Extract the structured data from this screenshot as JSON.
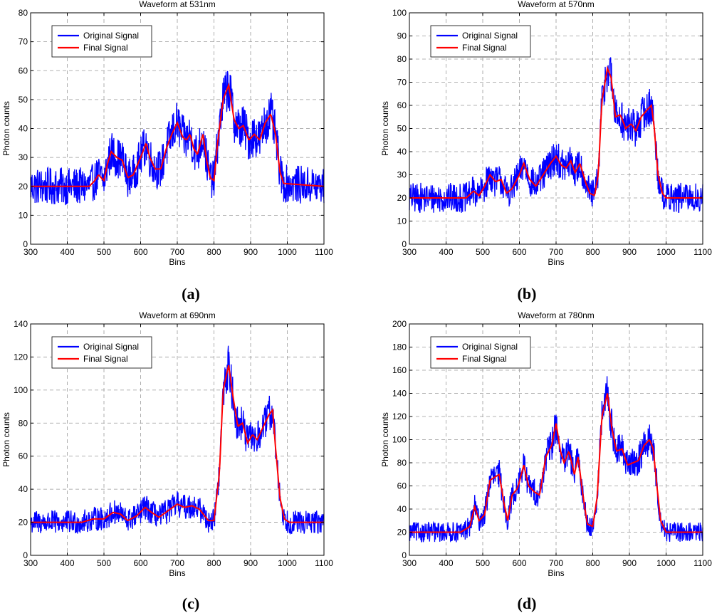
{
  "figure": {
    "legend_labels": [
      "Original Signal",
      "Final Signal"
    ],
    "series_colors": {
      "original": "#0000ff",
      "final": "#ff0000"
    }
  },
  "chart_data": [
    {
      "type": "line",
      "panel_label": "(a)",
      "panel_letter": "a",
      "title": "Waveform at 531nm",
      "xlabel": "Bins",
      "ylabel": "Photon counts",
      "xlim": [
        300,
        1100
      ],
      "ylim": [
        0,
        80
      ],
      "xticks": [
        300,
        400,
        500,
        600,
        700,
        800,
        900,
        1000,
        1100
      ],
      "yticks": [
        0,
        10,
        20,
        30,
        40,
        50,
        60,
        70,
        80
      ],
      "grid": true,
      "legend_position": "top-left",
      "noise_amplitude": 9,
      "series": [
        {
          "name": "Original Signal",
          "role": "original"
        },
        {
          "name": "Final Signal",
          "role": "final",
          "points": [
            [
              300,
              20
            ],
            [
              460,
              20
            ],
            [
              475,
              22
            ],
            [
              485,
              24
            ],
            [
              500,
              22
            ],
            [
              510,
              28
            ],
            [
              520,
              32
            ],
            [
              535,
              30
            ],
            [
              550,
              29
            ],
            [
              565,
              23
            ],
            [
              580,
              24
            ],
            [
              600,
              30
            ],
            [
              615,
              35
            ],
            [
              625,
              30
            ],
            [
              640,
              26
            ],
            [
              655,
              26
            ],
            [
              670,
              33
            ],
            [
              685,
              38
            ],
            [
              700,
              42
            ],
            [
              715,
              37
            ],
            [
              725,
              36
            ],
            [
              735,
              38
            ],
            [
              745,
              33
            ],
            [
              755,
              31
            ],
            [
              770,
              38
            ],
            [
              780,
              29
            ],
            [
              790,
              23
            ],
            [
              800,
              22
            ],
            [
              810,
              35
            ],
            [
              825,
              50
            ],
            [
              840,
              55
            ],
            [
              855,
              43
            ],
            [
              868,
              40
            ],
            [
              880,
              41
            ],
            [
              895,
              36
            ],
            [
              910,
              38
            ],
            [
              925,
              36
            ],
            [
              940,
              42
            ],
            [
              955,
              45
            ],
            [
              968,
              38
            ],
            [
              980,
              25
            ],
            [
              990,
              21
            ],
            [
              1100,
              20
            ]
          ]
        }
      ]
    },
    {
      "type": "line",
      "panel_label": "(b)",
      "panel_letter": "b",
      "title": "Waveform at 570nm",
      "xlabel": "Bins",
      "ylabel": "Photon counts",
      "xlim": [
        300,
        1100
      ],
      "ylim": [
        0,
        100
      ],
      "xticks": [
        300,
        400,
        500,
        600,
        700,
        800,
        900,
        1000,
        1100
      ],
      "yticks": [
        0,
        10,
        20,
        30,
        40,
        50,
        60,
        70,
        80,
        90,
        100
      ],
      "grid": true,
      "legend_position": "top-left",
      "noise_amplitude": 9,
      "series": [
        {
          "name": "Original Signal",
          "role": "original"
        },
        {
          "name": "Final Signal",
          "role": "final",
          "points": [
            [
              300,
              20
            ],
            [
              455,
              20
            ],
            [
              475,
              23
            ],
            [
              490,
              21
            ],
            [
              505,
              25
            ],
            [
              520,
              30
            ],
            [
              535,
              27
            ],
            [
              550,
              28
            ],
            [
              565,
              22
            ],
            [
              580,
              24
            ],
            [
              600,
              30
            ],
            [
              612,
              35
            ],
            [
              628,
              28
            ],
            [
              645,
              25
            ],
            [
              665,
              30
            ],
            [
              685,
              35
            ],
            [
              700,
              38
            ],
            [
              715,
              34
            ],
            [
              728,
              33
            ],
            [
              740,
              36
            ],
            [
              752,
              31
            ],
            [
              765,
              35
            ],
            [
              780,
              27
            ],
            [
              792,
              22
            ],
            [
              805,
              21
            ],
            [
              815,
              30
            ],
            [
              825,
              62
            ],
            [
              840,
              76
            ],
            [
              850,
              72
            ],
            [
              862,
              55
            ],
            [
              875,
              56
            ],
            [
              890,
              50
            ],
            [
              905,
              52
            ],
            [
              918,
              49
            ],
            [
              932,
              55
            ],
            [
              948,
              58
            ],
            [
              960,
              60
            ],
            [
              968,
              50
            ],
            [
              978,
              30
            ],
            [
              990,
              22
            ],
            [
              1000,
              20
            ],
            [
              1100,
              20
            ]
          ]
        }
      ]
    },
    {
      "type": "line",
      "panel_label": "(c)",
      "panel_letter": "c",
      "title": "Waveform at 690nm",
      "xlabel": "Bins",
      "ylabel": "Photon counts",
      "xlim": [
        300,
        1100
      ],
      "ylim": [
        0,
        140
      ],
      "xticks": [
        300,
        400,
        500,
        600,
        700,
        800,
        900,
        1000,
        1100
      ],
      "yticks": [
        0,
        20,
        40,
        60,
        80,
        100,
        120,
        140
      ],
      "grid": true,
      "legend_position": "top-left",
      "noise_amplitude": 10,
      "series": [
        {
          "name": "Original Signal",
          "role": "original"
        },
        {
          "name": "Final Signal",
          "role": "final",
          "points": [
            [
              300,
              20
            ],
            [
              440,
              20
            ],
            [
              470,
              22
            ],
            [
              500,
              22
            ],
            [
              525,
              26
            ],
            [
              545,
              25
            ],
            [
              565,
              21
            ],
            [
              590,
              24
            ],
            [
              612,
              29
            ],
            [
              630,
              26
            ],
            [
              650,
              23
            ],
            [
              675,
              27
            ],
            [
              700,
              31
            ],
            [
              720,
              29
            ],
            [
              740,
              30
            ],
            [
              760,
              28
            ],
            [
              785,
              21
            ],
            [
              800,
              21
            ],
            [
              815,
              50
            ],
            [
              825,
              100
            ],
            [
              840,
              115
            ],
            [
              852,
              96
            ],
            [
              865,
              78
            ],
            [
              878,
              80
            ],
            [
              892,
              68
            ],
            [
              905,
              73
            ],
            [
              918,
              70
            ],
            [
              935,
              78
            ],
            [
              950,
              85
            ],
            [
              960,
              88
            ],
            [
              968,
              65
            ],
            [
              980,
              35
            ],
            [
              992,
              22
            ],
            [
              1005,
              20
            ],
            [
              1100,
              20
            ]
          ]
        }
      ]
    },
    {
      "type": "line",
      "panel_label": "(d)",
      "panel_letter": "d",
      "title": "Waveform at 780nm",
      "xlabel": "Bins",
      "ylabel": "Photon counts",
      "xlim": [
        300,
        1100
      ],
      "ylim": [
        0,
        200
      ],
      "xticks": [
        300,
        400,
        500,
        600,
        700,
        800,
        900,
        1000,
        1100
      ],
      "yticks": [
        0,
        20,
        40,
        60,
        80,
        100,
        120,
        140,
        160,
        180,
        200
      ],
      "grid": true,
      "legend_position": "top-left",
      "noise_amplitude": 12,
      "series": [
        {
          "name": "Original Signal",
          "role": "original"
        },
        {
          "name": "Final Signal",
          "role": "final",
          "points": [
            [
              300,
              20
            ],
            [
              440,
              20
            ],
            [
              465,
              25
            ],
            [
              478,
              42
            ],
            [
              490,
              30
            ],
            [
              505,
              35
            ],
            [
              520,
              65
            ],
            [
              535,
              68
            ],
            [
              545,
              70
            ],
            [
              558,
              45
            ],
            [
              568,
              30
            ],
            [
              580,
              52
            ],
            [
              595,
              58
            ],
            [
              612,
              78
            ],
            [
              625,
              60
            ],
            [
              640,
              55
            ],
            [
              655,
              52
            ],
            [
              672,
              85
            ],
            [
              688,
              95
            ],
            [
              700,
              114
            ],
            [
              712,
              90
            ],
            [
              722,
              80
            ],
            [
              735,
              90
            ],
            [
              750,
              70
            ],
            [
              760,
              85
            ],
            [
              772,
              55
            ],
            [
              785,
              27
            ],
            [
              800,
              25
            ],
            [
              812,
              50
            ],
            [
              825,
              120
            ],
            [
              840,
              140
            ],
            [
              852,
              110
            ],
            [
              865,
              90
            ],
            [
              880,
              92
            ],
            [
              895,
              78
            ],
            [
              910,
              80
            ],
            [
              925,
              82
            ],
            [
              940,
              95
            ],
            [
              955,
              100
            ],
            [
              965,
              92
            ],
            [
              975,
              60
            ],
            [
              985,
              30
            ],
            [
              1000,
              20
            ],
            [
              1100,
              20
            ]
          ]
        }
      ]
    }
  ]
}
